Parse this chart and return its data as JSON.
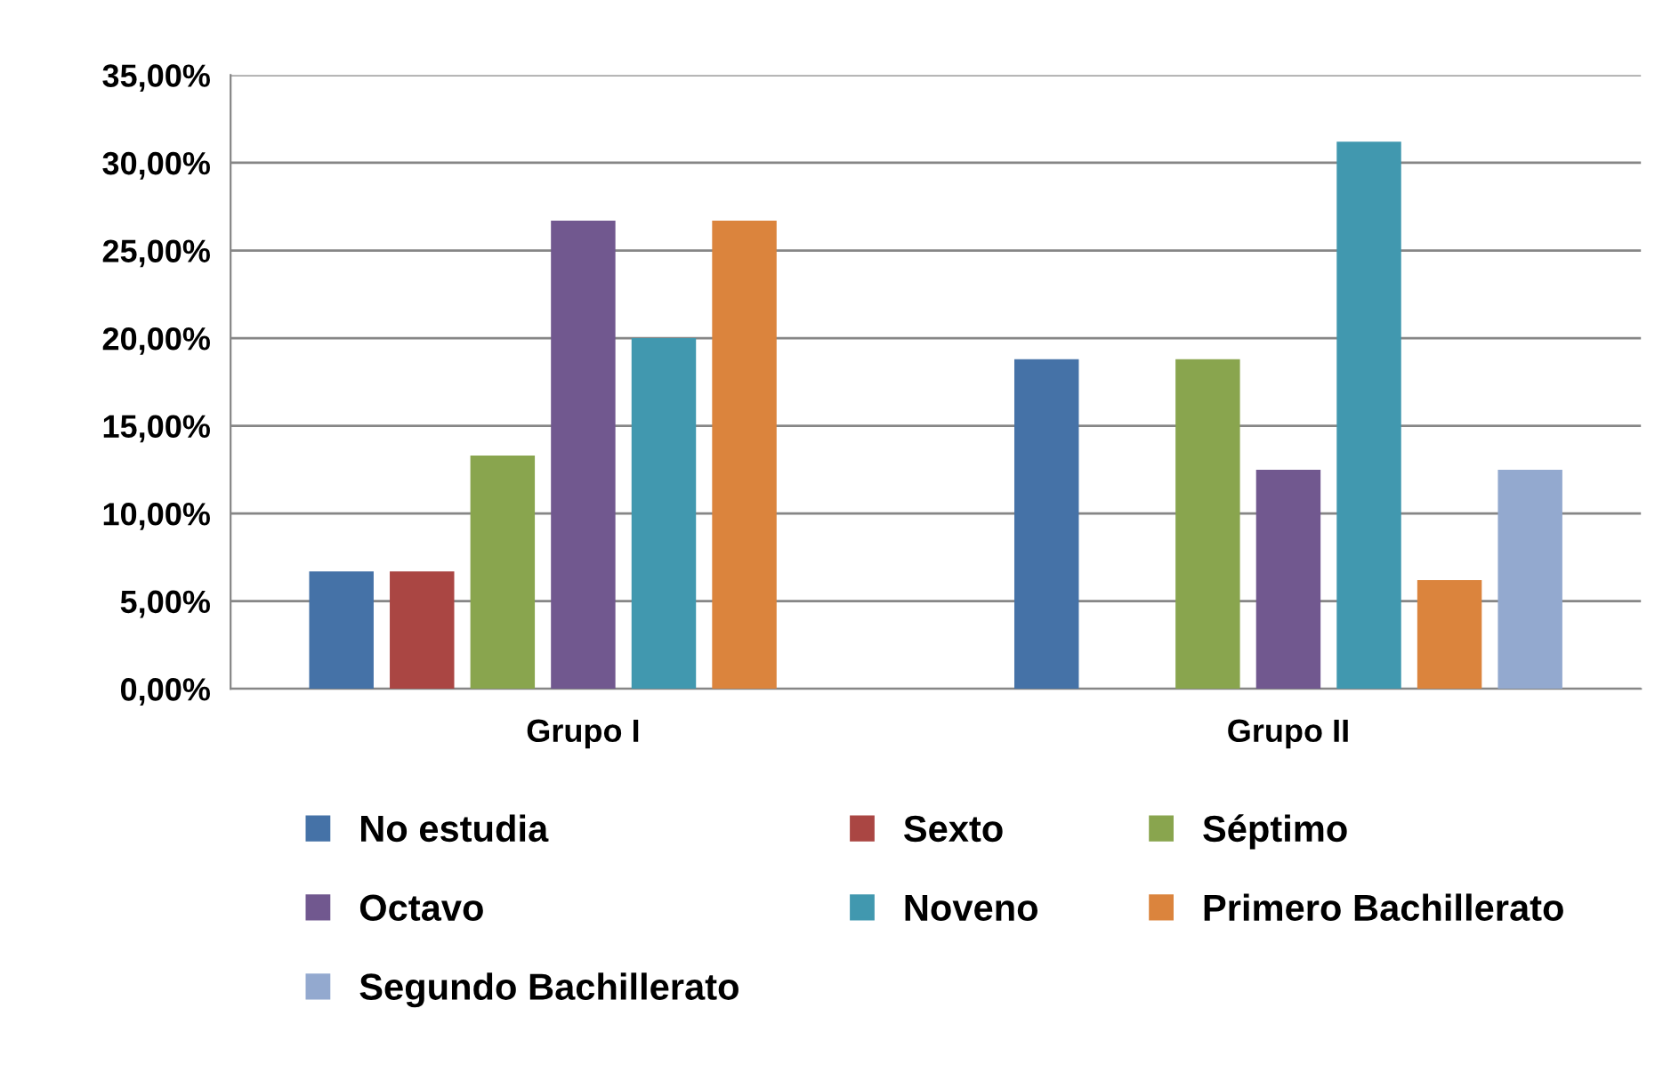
{
  "chart_data": {
    "type": "bar",
    "categories": [
      "Grupo I",
      "Grupo II"
    ],
    "series": [
      {
        "name": "No estudia",
        "color": "#4572a7",
        "values": [
          6.7,
          18.8
        ]
      },
      {
        "name": "Sexto",
        "color": "#aa4643",
        "values": [
          6.7,
          0
        ]
      },
      {
        "name": "Séptimo",
        "color": "#89a54e",
        "values": [
          13.3,
          18.8
        ]
      },
      {
        "name": "Octavo",
        "color": "#71588f",
        "values": [
          26.7,
          12.5
        ]
      },
      {
        "name": "Noveno",
        "color": "#4198af",
        "values": [
          20.0,
          31.2
        ]
      },
      {
        "name": "Primero Bachillerato",
        "color": "#db843d",
        "values": [
          26.7,
          6.2
        ]
      },
      {
        "name": "Segundo Bachillerato",
        "color": "#93a9cf",
        "values": [
          0,
          12.5
        ]
      }
    ],
    "ylim": [
      0,
      35
    ],
    "yticks": [
      {
        "value": 0,
        "label": "0,00%"
      },
      {
        "value": 5,
        "label": "5,00%"
      },
      {
        "value": 10,
        "label": "10,00%"
      },
      {
        "value": 15,
        "label": "15,00%"
      },
      {
        "value": 20,
        "label": "20,00%"
      },
      {
        "value": 25,
        "label": "25,00%"
      },
      {
        "value": 30,
        "label": "30,00%"
      },
      {
        "value": 35,
        "label": "35,00%"
      }
    ],
    "grid": "y",
    "legend": "bottom"
  }
}
